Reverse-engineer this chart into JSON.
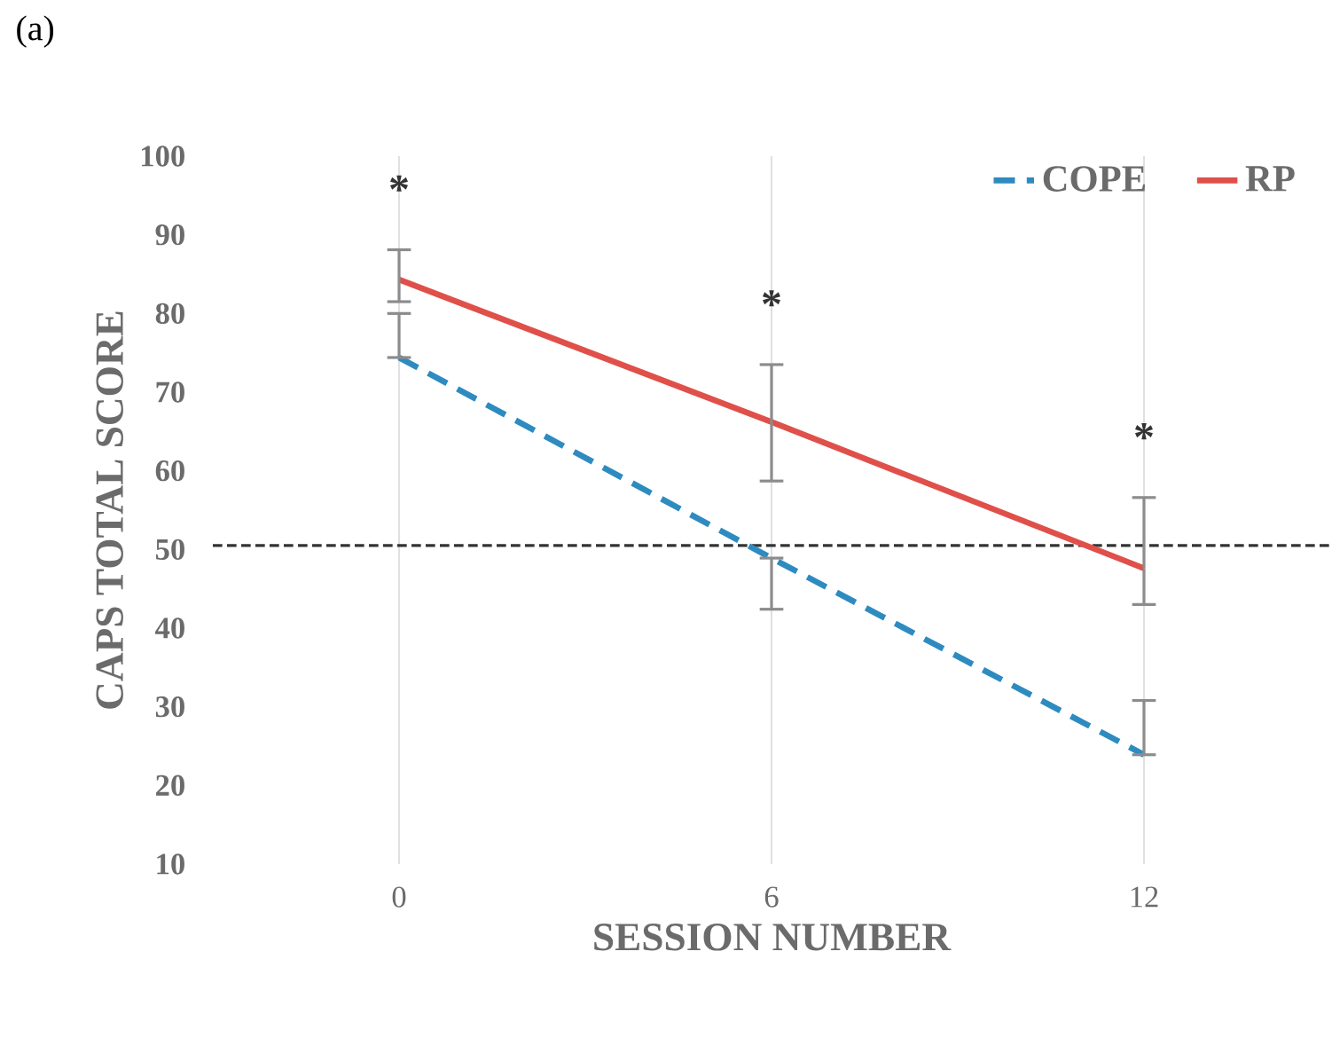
{
  "chart_data": {
    "type": "line",
    "xlabel": "SESSION NUMBER",
    "ylabel": "CAPS TOTAL SCORE",
    "categories": [
      "0",
      "6",
      "12"
    ],
    "series": [
      {
        "name": "COPE",
        "color": "#2e8bc0",
        "line_style": "dashed",
        "values": [
          74.4,
          48.9,
          23.9
        ],
        "errors": [
          [
            74.4,
            80.0
          ],
          [
            42.4,
            48.9
          ],
          [
            23.9,
            30.8
          ]
        ]
      },
      {
        "name": "RP",
        "color": "#e0504a",
        "line_style": "solid",
        "values": [
          84.3,
          66.2,
          47.6
        ],
        "errors": [
          [
            81.5,
            88.1
          ],
          [
            58.7,
            73.5
          ],
          [
            43.0,
            56.6
          ]
        ]
      }
    ],
    "ylim": [
      10,
      100
    ],
    "yticks": [
      10,
      20,
      30,
      40,
      50,
      60,
      70,
      80,
      90,
      100
    ],
    "grid": "x",
    "legend": "top right",
    "marker": "none",
    "ref_lines": [
      {
        "axis": "y",
        "value": 50.5,
        "color": "#333333",
        "line_style": "dashed"
      }
    ],
    "annotations": [
      "(a)",
      "*",
      "*",
      "*"
    ]
  }
}
